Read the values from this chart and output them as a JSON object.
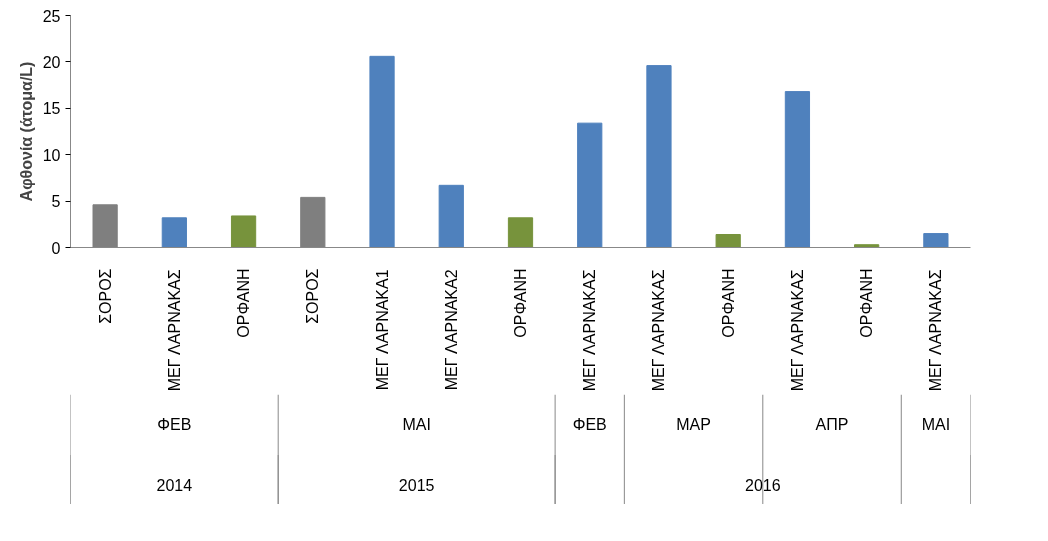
{
  "chart_data": {
    "type": "bar",
    "ylabel": "Αφθονία (άτομα/L)",
    "categories": [
      "ΣΟΡΟΣ",
      "ΜΕΓ ΛΑΡΝΑΚΑΣ",
      "ΟΡΦΑΝΗ",
      "ΣΟΡΟΣ",
      "ΜΕΓ ΛΑΡΝΑΚΑ1",
      "ΜΕΓ ΛΑΡΝΑΚΑ2",
      "ΟΡΦΑΝΗ",
      "ΜΕΓ ΛΑΡΝΑΚΑΣ",
      "ΜΕΓ ΛΑΡΝΑΚΑΣ",
      "ΟΡΦΑΝΗ",
      "ΜΕΓ ΛΑΡΝΑΚΑΣ",
      "ΟΡΦΑΝΗ",
      "ΜΕΓ ΛΑΡΝΑΚΑΣ"
    ],
    "values": [
      4.6,
      3.2,
      3.4,
      5.4,
      20.6,
      6.7,
      3.2,
      13.4,
      19.6,
      1.4,
      16.8,
      0.3,
      1.5
    ],
    "colors": [
      "#7f7f7f",
      "#4f81bd",
      "#77933c",
      "#7f7f7f",
      "#4f81bd",
      "#4f81bd",
      "#77933c",
      "#4f81bd",
      "#4f81bd",
      "#77933c",
      "#4f81bd",
      "#77933c",
      "#4f81bd"
    ],
    "ylim": [
      0,
      25
    ],
    "yticks": [
      0,
      5,
      10,
      15,
      20,
      25
    ],
    "grid": false,
    "annotations": [
      "ΦΕΒ",
      "ΜΑΙ",
      "ΦΕΒ",
      "ΜΑΡ",
      "ΑΠΡ",
      "ΜΑΙ",
      "2014",
      "2015",
      "2016"
    ]
  }
}
